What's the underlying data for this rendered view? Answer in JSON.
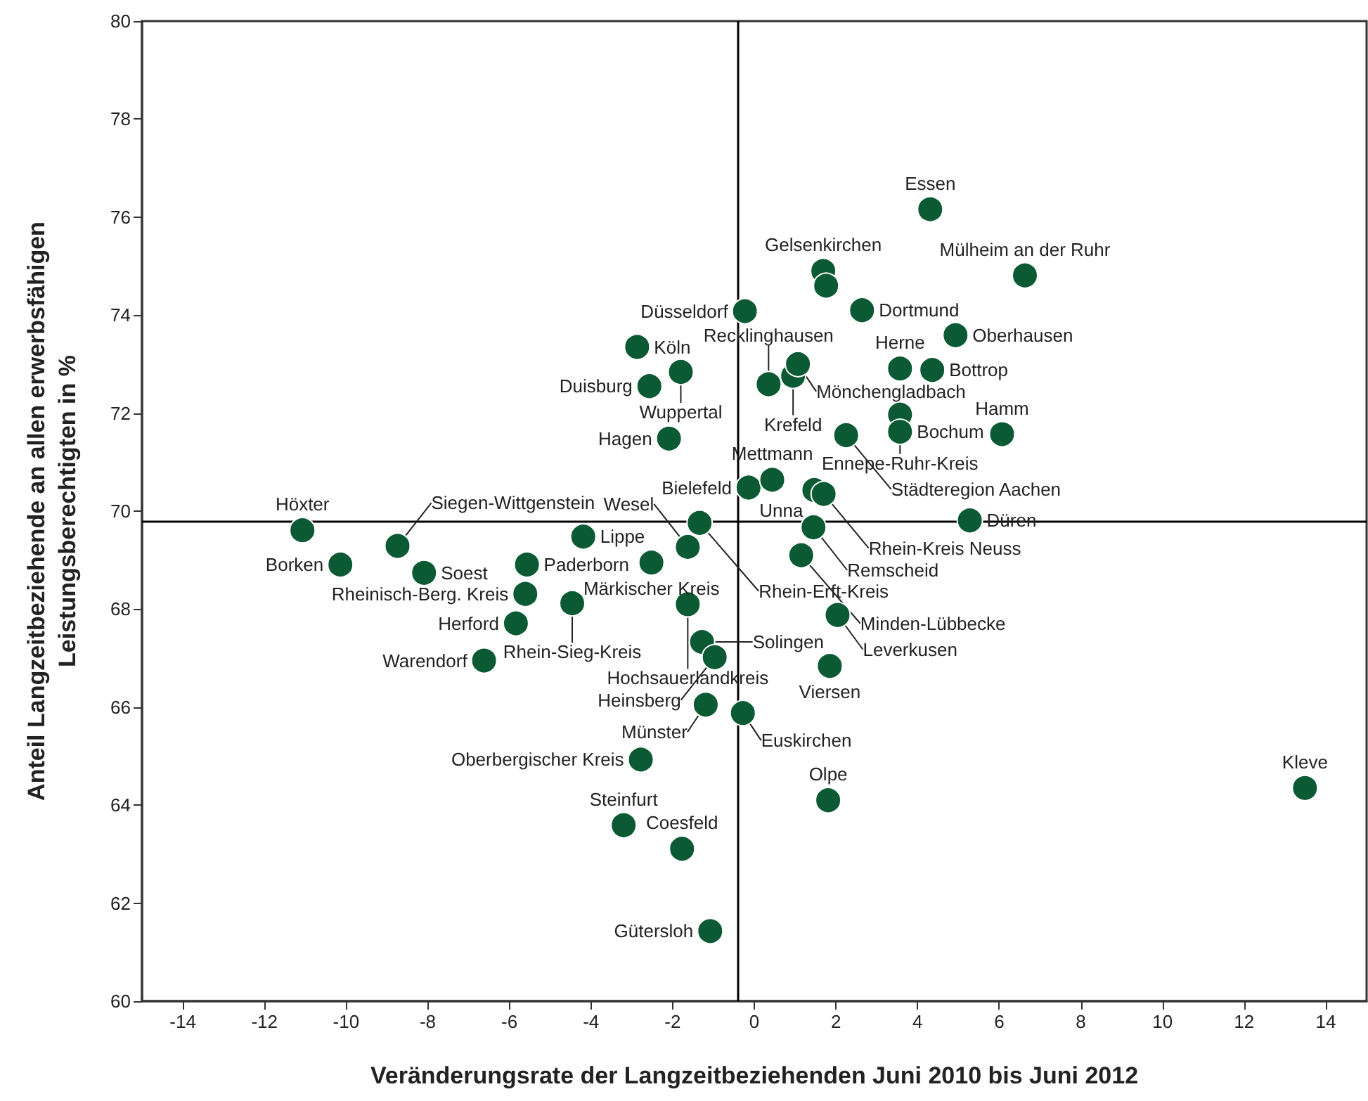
{
  "chart_data": {
    "type": "scatter",
    "xlabel": "Veränderungsrate der Langzeitbeziehenden Juni 2010 bis Juni 2012",
    "ylabel": "Anteil Langzeitbeziehende an allen erwerbsfähigen\nLeistungsberechtigten in %",
    "series": [
      {
        "color": "#0b5a33",
        "x": [
          4.31,
          1.69,
          1.76,
          6.63,
          -0.23,
          2.64,
          -2.87,
          4.93,
          -1.8,
          -2.57,
          0.35,
          0.95,
          1.07,
          3.57,
          4.36,
          3.57,
          3.57,
          2.25,
          6.07,
          -2.09,
          -0.14,
          0.44,
          1.47,
          1.7,
          -11.07,
          -8.74,
          -1.34,
          1.45,
          5.28,
          -4.19,
          -1.63,
          -10.14,
          -8.09,
          -5.57,
          1.15,
          -2.52,
          -5.61,
          -4.46,
          -1.63,
          -5.84,
          2.04,
          -1.28,
          -0.97,
          -6.62,
          1.85,
          -1.19,
          -0.28,
          -2.78,
          1.81,
          13.49,
          -3.2,
          -1.77,
          -1.08
        ],
        "values": [
          76.16,
          74.9,
          74.6,
          74.81,
          74.08,
          74.1,
          73.35,
          73.59,
          72.84,
          72.55,
          72.59,
          72.76,
          73.0,
          72.91,
          72.88,
          71.97,
          71.62,
          71.55,
          71.57,
          71.48,
          70.48,
          70.64,
          70.43,
          70.35,
          69.61,
          69.29,
          69.76,
          69.67,
          69.81,
          69.48,
          69.27,
          68.91,
          68.74,
          68.91,
          69.1,
          68.95,
          68.31,
          68.12,
          68.1,
          67.71,
          67.88,
          67.33,
          67.02,
          66.95,
          66.84,
          66.05,
          65.88,
          64.93,
          64.1,
          64.35,
          63.59,
          63.11,
          61.43
        ]
      }
    ],
    "annotations": [
      {
        "text": "Essen",
        "x": 4.31,
        "y": 76.16
      },
      {
        "text": "Gelsenkirchen",
        "x": 1.69,
        "y": 74.9
      },
      {
        "text": "Mülheim an der Ruhr",
        "x": 6.63,
        "y": 74.81
      },
      {
        "text": "Düsseldorf",
        "x": -0.23,
        "y": 74.08
      },
      {
        "text": "Dortmund",
        "x": 2.64,
        "y": 74.1
      },
      {
        "text": "Köln",
        "x": -2.87,
        "y": 73.35
      },
      {
        "text": "Oberhausen",
        "x": 4.93,
        "y": 73.59
      },
      {
        "text": "Wuppertal",
        "x": -1.8,
        "y": 72.84
      },
      {
        "text": "Duisburg",
        "x": -2.57,
        "y": 72.55
      },
      {
        "text": "Recklinghausen",
        "x": 0.35,
        "y": 72.59
      },
      {
        "text": "Krefeld",
        "x": 0.95,
        "y": 72.76
      },
      {
        "text": "Mönchengladbach",
        "x": 1.07,
        "y": 73.0
      },
      {
        "text": "Herne",
        "x": 3.57,
        "y": 72.91
      },
      {
        "text": "Bottrop",
        "x": 4.36,
        "y": 72.88
      },
      {
        "text": "Ennepe-Ruhr-Kreis",
        "x": 3.57,
        "y": 71.97
      },
      {
        "text": "Bochum",
        "x": 3.57,
        "y": 71.62
      },
      {
        "text": "Städteregion Aachen",
        "x": 2.25,
        "y": 71.55
      },
      {
        "text": "Hamm",
        "x": 6.07,
        "y": 71.57
      },
      {
        "text": "Hagen",
        "x": -2.09,
        "y": 71.48
      },
      {
        "text": "Bielefeld",
        "x": -0.14,
        "y": 70.48
      },
      {
        "text": "Mettmann",
        "x": 0.44,
        "y": 70.64
      },
      {
        "text": "Unna",
        "x": 1.47,
        "y": 70.43
      },
      {
        "text": "Rhein-Kreis Neuss",
        "x": 1.7,
        "y": 70.35
      },
      {
        "text": "Höxter",
        "x": -11.07,
        "y": 69.61
      },
      {
        "text": "Siegen-Wittgenstein",
        "x": -8.74,
        "y": 69.29
      },
      {
        "text": "Rhein-Erft-Kreis",
        "x": -1.34,
        "y": 69.76
      },
      {
        "text": "Remscheid",
        "x": 1.45,
        "y": 69.67
      },
      {
        "text": "Düren",
        "x": 5.28,
        "y": 69.81
      },
      {
        "text": "Lippe",
        "x": -4.19,
        "y": 69.48
      },
      {
        "text": "Wesel",
        "x": -1.63,
        "y": 69.27
      },
      {
        "text": "Borken",
        "x": -10.14,
        "y": 68.91
      },
      {
        "text": "Soest",
        "x": -8.09,
        "y": 68.74
      },
      {
        "text": "Paderborn",
        "x": -5.57,
        "y": 68.91
      },
      {
        "text": "Minden-Lübbecke",
        "x": 1.15,
        "y": 69.1
      },
      {
        "text": "Märkischer Kreis",
        "x": -2.52,
        "y": 68.95
      },
      {
        "text": "Rheinisch-Berg. Kreis",
        "x": -5.61,
        "y": 68.31
      },
      {
        "text": "Rhein-Sieg-Kreis",
        "x": -4.46,
        "y": 68.12
      },
      {
        "text": "Hochsauerlandkreis",
        "x": -1.63,
        "y": 68.1
      },
      {
        "text": "Herford",
        "x": -5.84,
        "y": 67.71
      },
      {
        "text": "Leverkusen",
        "x": 2.04,
        "y": 67.88
      },
      {
        "text": "Solingen",
        "x": -1.28,
        "y": 67.33
      },
      {
        "text": "Heinsberg",
        "x": -0.97,
        "y": 67.02
      },
      {
        "text": "Warendorf",
        "x": -6.62,
        "y": 66.95
      },
      {
        "text": "Viersen",
        "x": 1.85,
        "y": 66.84
      },
      {
        "text": "Münster",
        "x": -1.19,
        "y": 66.05
      },
      {
        "text": "Euskirchen",
        "x": -0.28,
        "y": 65.88
      },
      {
        "text": "Oberbergischer Kreis",
        "x": -2.78,
        "y": 64.93
      },
      {
        "text": "Olpe",
        "x": 1.81,
        "y": 64.1
      },
      {
        "text": "Kleve",
        "x": 13.49,
        "y": 64.35
      },
      {
        "text": "Steinfurt",
        "x": -3.2,
        "y": 63.59
      },
      {
        "text": "Coesfeld",
        "x": -1.77,
        "y": 63.11
      },
      {
        "text": "Gütersloh",
        "x": -1.08,
        "y": 61.43
      }
    ],
    "xlim": [
      -15,
      15
    ],
    "xticks": [
      -14,
      -12,
      -10,
      -8,
      -6,
      -4,
      -2,
      0,
      2,
      4,
      6,
      8,
      10,
      12,
      14
    ],
    "ylim": [
      60,
      80
    ],
    "yticks": [
      60,
      62,
      64,
      66,
      68,
      70,
      72,
      74,
      76,
      78,
      80
    ],
    "ref_lines": [
      {
        "axis": "x",
        "value": -0.4,
        "color": "#000000"
      },
      {
        "axis": "y",
        "value": 69.8,
        "color": "#000000"
      }
    ],
    "grid": false,
    "marker": "circle"
  }
}
